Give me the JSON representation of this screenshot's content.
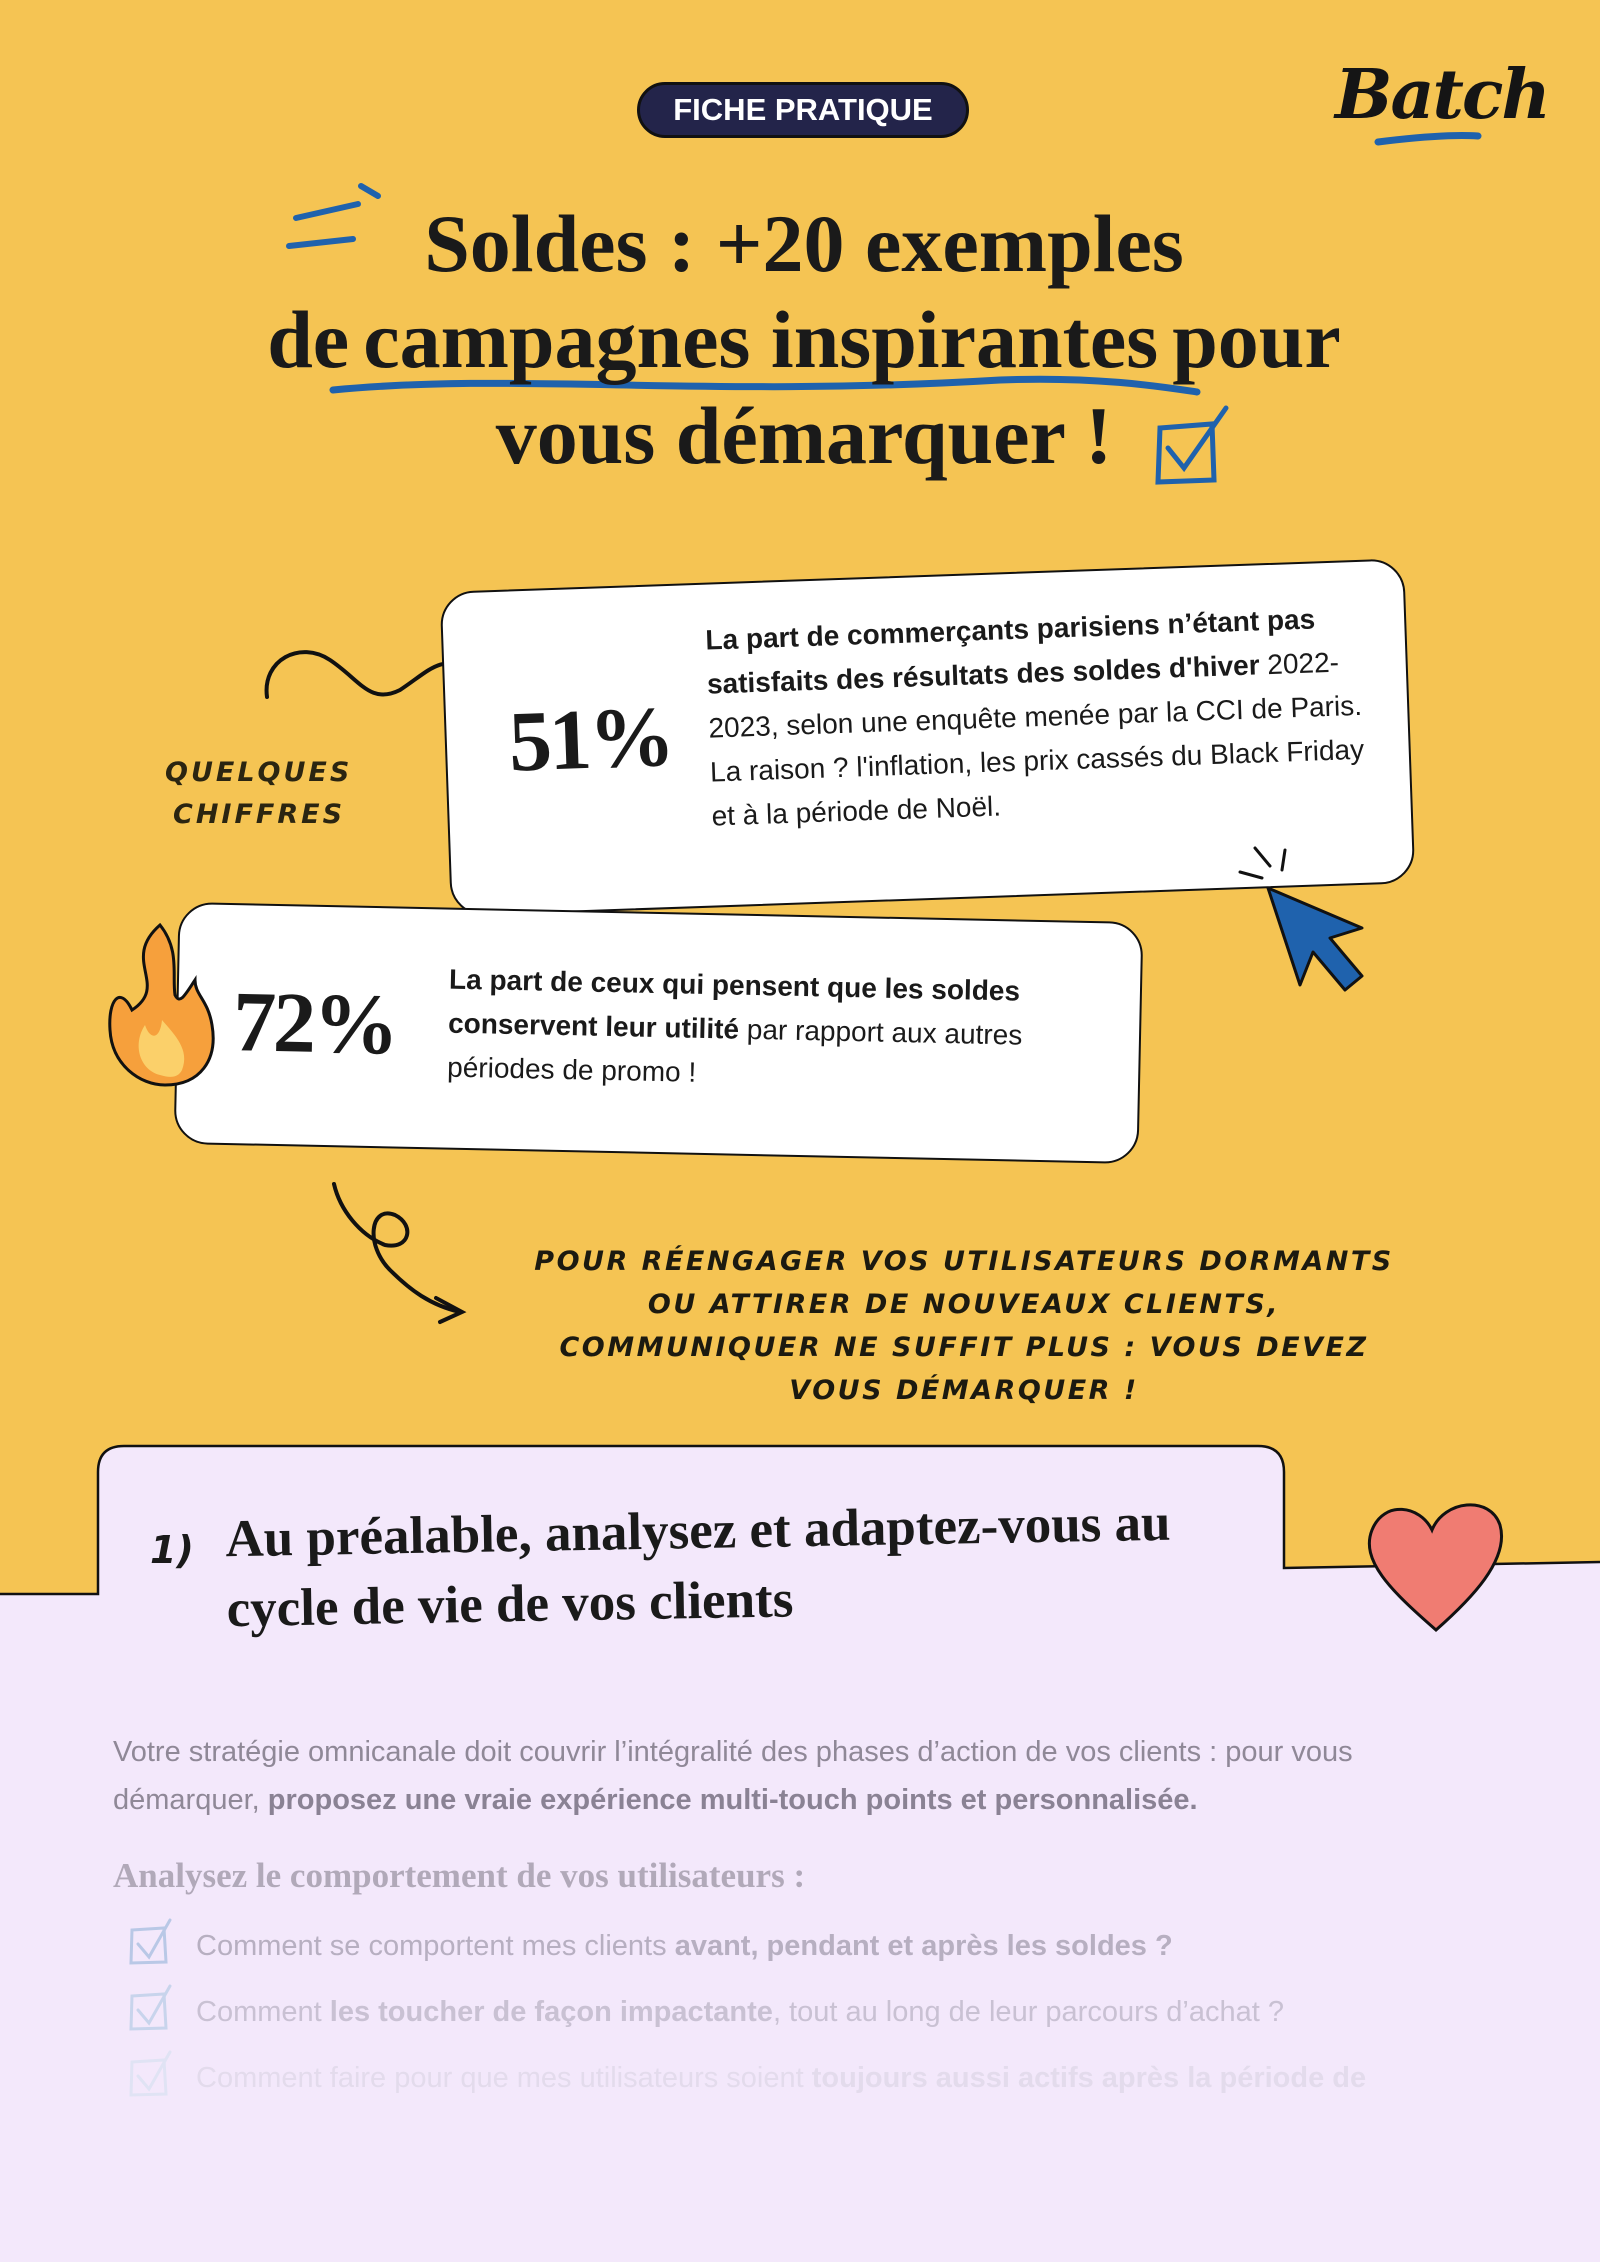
{
  "header": {
    "badge": "FICHE PRATIQUE",
    "logo": "Batch"
  },
  "title": {
    "line1": "Soldes : +20 exemples",
    "line2": {
      "before": "de",
      "highlight": "campagnes inspirantes",
      "after": "pour"
    },
    "line3": "vous démarquer !"
  },
  "side_label": [
    "QUELQUES",
    "CHIFFRES"
  ],
  "stats": [
    {
      "figure": "51%",
      "bold": "La part de commerçants parisiens n’étant pas satisfaits des résultats des soldes d'hiver",
      "text": "2022-2023, selon une enquête menée par la CCI de Paris.",
      "note": "La raison ? l'inflation, les prix cassés du Black Friday et à la période de Noël."
    },
    {
      "figure": "72%",
      "bold": "La part de ceux qui pensent que les soldes conservent leur utilité",
      "text": "par rapport aux autres périodes de promo !"
    }
  ],
  "callout": "POUR RÉENGAGER VOS UTILISATEURS DORMANTS OU ATTIRER DE NOUVEAUX CLIENTS, COMMUNIQUER NE SUFFIT PLUS : VOUS DEVEZ VOUS DÉMARQUER !",
  "section": {
    "number": "1)",
    "heading": "Au préalable, analysez et adaptez-vous au cycle de vie de vos clients",
    "intro": {
      "text": "Votre stratégie omnicanale doit couvrir l’intégralité des phases d’action de vos clients : pour vous démarquer,",
      "bold": "proposez une vraie expérience multi-touch points et personnalisée."
    },
    "subheading": "Analysez le comportement de vos utilisateurs :",
    "checklist": [
      {
        "before": "Comment se comportent mes clients",
        "bold": "avant, pendant et après les soldes ?"
      },
      {
        "before": "Comment",
        "bold": "les toucher de façon impactante",
        "after": ", tout au long de leur parcours d’achat ?"
      },
      {
        "before": "Comment faire pour que mes utilisateurs soient",
        "bold": "toujours aussi actifs après la période de"
      }
    ]
  }
}
